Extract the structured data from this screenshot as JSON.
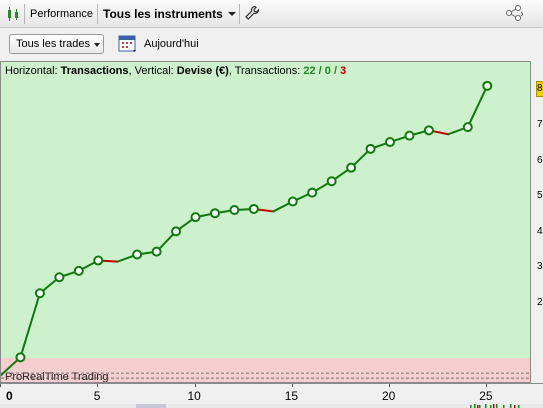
{
  "toolbar": {
    "performance_label": "Performance",
    "instruments_label": "Tous les instruments"
  },
  "filters": {
    "trades_label": "Tous les trades",
    "date_label": "Aujourd'hui"
  },
  "chart_info": {
    "prefix": "Horizontal: ",
    "horizontal": "Transactions",
    "vertical_prefix": ", Vertical: ",
    "vertical": "Devise (€)",
    "count_prefix": ", Transactions: ",
    "wins": "22",
    "sep1": " / ",
    "neutral": "0",
    "sep2": " / ",
    "losses": "3"
  },
  "brand": "ProRealTime Trading",
  "colors": {
    "up": "#0e7a0e",
    "down": "#c00000",
    "panel_bg": "#cdf0cd",
    "loss_zone": "#f5cfcf",
    "highlight": "#f0d000"
  },
  "chart_data": {
    "type": "line",
    "xlabel": "",
    "ylabel": "",
    "x_ticks": [
      "0",
      "5",
      "10",
      "15",
      "20",
      "25"
    ],
    "y_ticks": [
      "2",
      "3",
      "4",
      "5",
      "6",
      "7",
      "8"
    ],
    "x": [
      0,
      1,
      2,
      3,
      4,
      5,
      6,
      7,
      8,
      9,
      10,
      11,
      12,
      13,
      14,
      15,
      16,
      17,
      18,
      19,
      20,
      21,
      22,
      23,
      24,
      25
    ],
    "values": [
      0.0,
      0.5,
      2.3,
      2.75,
      2.93,
      3.22,
      3.19,
      3.39,
      3.47,
      4.04,
      4.44,
      4.55,
      4.64,
      4.67,
      4.6,
      4.88,
      5.13,
      5.45,
      5.83,
      6.36,
      6.55,
      6.73,
      6.88,
      6.77,
      6.97,
      8.13
    ],
    "losing_trades": [
      6,
      14,
      23
    ],
    "xlim": [
      0,
      27.3
    ],
    "ylim": [
      -0.25,
      8.8
    ]
  },
  "right_axis": {
    "highlight_value": "8"
  }
}
